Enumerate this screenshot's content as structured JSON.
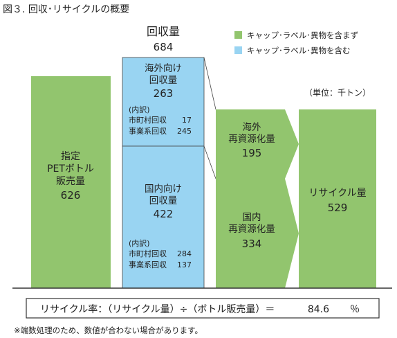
{
  "title": "図３. 回収･リサイクルの概要",
  "unit": "（単位：千トン）",
  "legend": [
    {
      "label": "キャップ･ラベル･異物を含まず",
      "color": "#92c56e"
    },
    {
      "label": "キャップ･ラベル･異物を含む",
      "color": "#99d4f2"
    }
  ],
  "formula_prefix": "リサイクル率：（リサイクル量）÷（ボトル販売量）＝",
  "formula_value": "84.6",
  "formula_unit": "％",
  "footnote": "※端数処理のため、数値が合わない場合があります。",
  "colors": {
    "green": "#92c56e",
    "blue": "#99d4f2",
    "axis": "#333333",
    "border": "#444444"
  },
  "chart_data": {
    "type": "bar",
    "total_collected": {
      "label": "回収量",
      "value": 684
    },
    "sales": {
      "label_lines": [
        "指定",
        "PETボトル",
        "販売量"
      ],
      "value": 626
    },
    "overseas_collected": {
      "label_lines": [
        "海外向け",
        "回収量"
      ],
      "value": 263,
      "breakdown_title": "(内訳)",
      "breakdown": [
        {
          "label": "市町村回収",
          "value": 17
        },
        {
          "label": "事業系回収",
          "value": 245
        }
      ]
    },
    "domestic_collected": {
      "label_lines": [
        "国内向け",
        "回収量"
      ],
      "value": 422,
      "breakdown_title": "(内訳)",
      "breakdown": [
        {
          "label": "市町村回収",
          "value": 284
        },
        {
          "label": "事業系回収",
          "value": 137
        }
      ]
    },
    "overseas_recycled": {
      "label_lines": [
        "海外",
        "再資源化量"
      ],
      "value": 195
    },
    "domestic_recycled": {
      "label_lines": [
        "国内",
        "再資源化量"
      ],
      "value": 334
    },
    "recycled_total": {
      "label": "リサイクル量",
      "value": 529
    }
  }
}
